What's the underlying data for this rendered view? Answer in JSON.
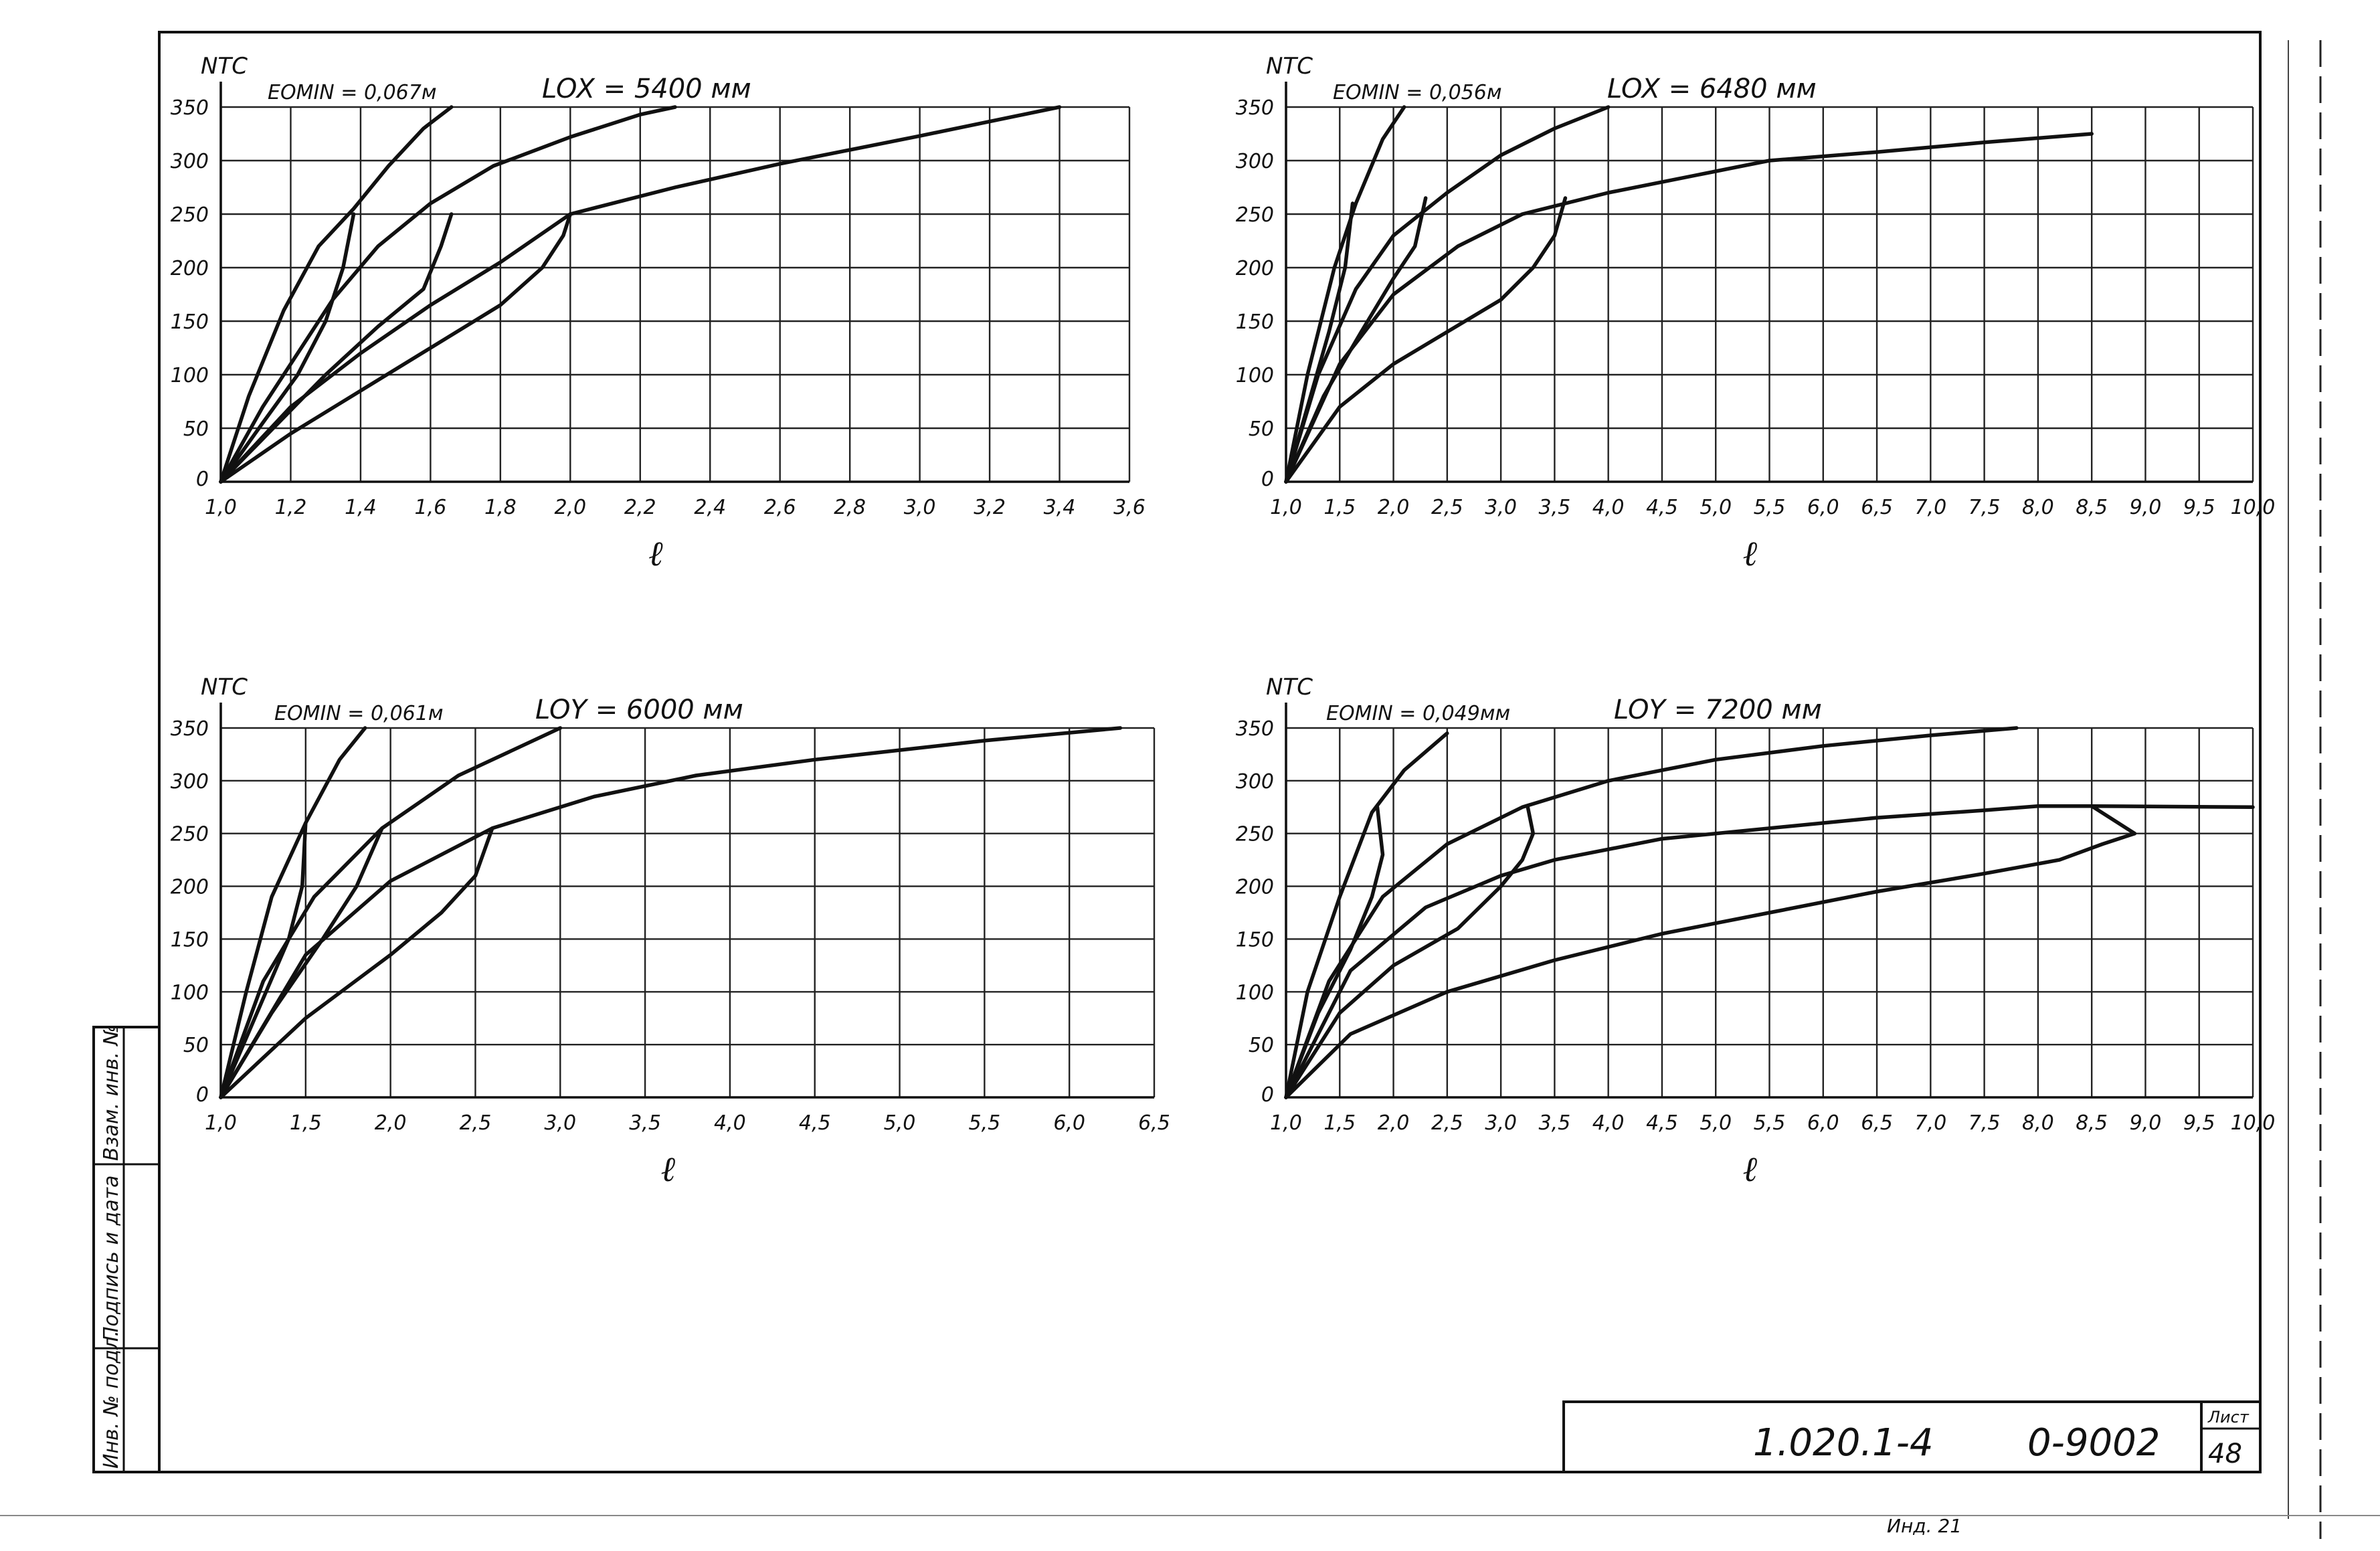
{
  "sheet": {
    "side_labels": [
      "Взам. инв. №",
      "Подпись и дата",
      "Инв. № подл."
    ],
    "code": "1.020.1-4",
    "doc": "0-9002",
    "sheet_label": "Лист",
    "sheet_number": "48",
    "bottom_note": "Инд. 21"
  },
  "chart_data": [
    {
      "type": "line",
      "ylabel": "NТС",
      "xlabel": "ℓ",
      "eomin": "EOMIN = 0,067м",
      "length": "LOX = 5400 мм",
      "xlim": [
        1.0,
        3.6
      ],
      "ylim": [
        0,
        350
      ],
      "x_ticks": [
        "1,0",
        "1,2",
        "1,4",
        "1,6",
        "1,8",
        "2,0",
        "2,2",
        "2,4",
        "2,6",
        "2,8",
        "3,0",
        "3,2",
        "3,4",
        "3,6"
      ],
      "y_ticks": [
        "0",
        "50",
        "100",
        "150",
        "200",
        "250",
        "300",
        "350"
      ],
      "grid": true,
      "series": [
        {
          "points": [
            [
              1.0,
              0
            ],
            [
              1.08,
              80
            ],
            [
              1.18,
              160
            ],
            [
              1.28,
              220
            ],
            [
              1.38,
              255
            ],
            [
              1.48,
              295
            ],
            [
              1.58,
              330
            ],
            [
              1.66,
              350
            ]
          ]
        },
        {
          "points": [
            [
              1.0,
              0
            ],
            [
              1.12,
              70
            ],
            [
              1.22,
              120
            ],
            [
              1.32,
              170
            ],
            [
              1.45,
              220
            ],
            [
              1.6,
              260
            ],
            [
              1.78,
              295
            ],
            [
              2.0,
              322
            ],
            [
              2.2,
              343
            ],
            [
              2.3,
              350
            ]
          ]
        },
        {
          "points": [
            [
              1.0,
              0
            ],
            [
              1.2,
              70
            ],
            [
              1.4,
              120
            ],
            [
              1.6,
              165
            ],
            [
              1.8,
              205
            ],
            [
              2.0,
              250
            ],
            [
              2.3,
              275
            ],
            [
              2.6,
              297
            ],
            [
              3.0,
              323
            ],
            [
              3.4,
              350
            ]
          ]
        },
        {
          "points": [
            [
              1.0,
              0
            ],
            [
              1.2,
              45
            ],
            [
              1.4,
              85
            ],
            [
              1.6,
              125
            ],
            [
              1.8,
              165
            ],
            [
              1.92,
              200
            ],
            [
              1.98,
              230
            ],
            [
              2.0,
              250
            ]
          ]
        },
        {
          "points": [
            [
              1.0,
              0
            ],
            [
              1.15,
              50
            ],
            [
              1.3,
              100
            ],
            [
              1.45,
              145
            ],
            [
              1.58,
              180
            ],
            [
              1.63,
              220
            ],
            [
              1.66,
              250
            ]
          ]
        },
        {
          "points": [
            [
              1.0,
              0
            ],
            [
              1.12,
              55
            ],
            [
              1.22,
              100
            ],
            [
              1.3,
              150
            ],
            [
              1.35,
              200
            ],
            [
              1.38,
              250
            ]
          ]
        }
      ]
    },
    {
      "type": "line",
      "ylabel": "NТС",
      "xlabel": "ℓ",
      "eomin": "EOMIN = 0,056м",
      "length": "LOX = 6480 мм",
      "xlim": [
        1.0,
        10.0
      ],
      "ylim": [
        0,
        350
      ],
      "x_ticks": [
        "1,0",
        "1,5",
        "2,0",
        "2,5",
        "3,0",
        "3,5",
        "4,0",
        "4,5",
        "5,0",
        "5,5",
        "6,0",
        "6,5",
        "7,0",
        "7,5",
        "8,0",
        "8,5",
        "9,0",
        "9,5",
        "10,0"
      ],
      "y_ticks": [
        "0",
        "50",
        "100",
        "150",
        "200",
        "250",
        "300",
        "350"
      ],
      "grid": true,
      "series": [
        {
          "points": [
            [
              1.0,
              0
            ],
            [
              1.2,
              100
            ],
            [
              1.45,
              200
            ],
            [
              1.65,
              260
            ],
            [
              1.9,
              320
            ],
            [
              2.1,
              350
            ]
          ]
        },
        {
          "points": [
            [
              1.0,
              0
            ],
            [
              1.3,
              100
            ],
            [
              1.65,
              180
            ],
            [
              2.0,
              230
            ],
            [
              2.5,
              270
            ],
            [
              3.0,
              305
            ],
            [
              3.5,
              330
            ],
            [
              4.0,
              350
            ]
          ]
        },
        {
          "points": [
            [
              1.0,
              0
            ],
            [
              1.5,
              110
            ],
            [
              2.0,
              175
            ],
            [
              2.6,
              220
            ],
            [
              3.2,
              250
            ],
            [
              4.0,
              270
            ],
            [
              5.0,
              290
            ],
            [
              5.5,
              300
            ],
            [
              6.5,
              308
            ],
            [
              7.5,
              317
            ],
            [
              8.5,
              325
            ]
          ]
        },
        {
          "points": [
            [
              1.0,
              0
            ],
            [
              1.5,
              70
            ],
            [
              2.0,
              110
            ],
            [
              2.5,
              140
            ],
            [
              3.0,
              170
            ],
            [
              3.3,
              200
            ],
            [
              3.5,
              230
            ],
            [
              3.6,
              265
            ]
          ]
        },
        {
          "points": [
            [
              1.0,
              0
            ],
            [
              1.35,
              80
            ],
            [
              1.7,
              140
            ],
            [
              2.0,
              190
            ],
            [
              2.2,
              220
            ],
            [
              2.3,
              265
            ]
          ]
        },
        {
          "points": [
            [
              1.0,
              0
            ],
            [
              1.2,
              70
            ],
            [
              1.4,
              140
            ],
            [
              1.55,
              200
            ],
            [
              1.62,
              260
            ]
          ]
        }
      ]
    },
    {
      "type": "line",
      "ylabel": "NТС",
      "xlabel": "ℓ",
      "eomin": "EOMIN = 0,061м",
      "length": "LOY = 6000 мм",
      "xlim": [
        1.0,
        6.5
      ],
      "ylim": [
        0,
        350
      ],
      "x_ticks": [
        "1,0",
        "1,5",
        "2,0",
        "2,5",
        "3,0",
        "3,5",
        "4,0",
        "4,5",
        "5,0",
        "5,5",
        "6,0",
        "6,5"
      ],
      "y_ticks": [
        "0",
        "50",
        "100",
        "150",
        "200",
        "250",
        "300",
        "350"
      ],
      "grid": true,
      "series": [
        {
          "points": [
            [
              1.0,
              0
            ],
            [
              1.15,
              100
            ],
            [
              1.3,
              190
            ],
            [
              1.5,
              260
            ],
            [
              1.7,
              320
            ],
            [
              1.85,
              350
            ]
          ]
        },
        {
          "points": [
            [
              1.0,
              0
            ],
            [
              1.25,
              110
            ],
            [
              1.55,
              190
            ],
            [
              1.95,
              255
            ],
            [
              2.4,
              305
            ],
            [
              3.0,
              350
            ]
          ]
        },
        {
          "points": [
            [
              1.0,
              0
            ],
            [
              1.5,
              135
            ],
            [
              2.0,
              205
            ],
            [
              2.6,
              255
            ],
            [
              3.2,
              285
            ],
            [
              3.8,
              305
            ],
            [
              4.5,
              320
            ],
            [
              5.5,
              338
            ],
            [
              6.3,
              350
            ]
          ]
        },
        {
          "points": [
            [
              1.0,
              0
            ],
            [
              1.5,
              75
            ],
            [
              2.0,
              135
            ],
            [
              2.3,
              175
            ],
            [
              2.5,
              210
            ],
            [
              2.6,
              255
            ]
          ]
        },
        {
          "points": [
            [
              1.0,
              0
            ],
            [
              1.3,
              80
            ],
            [
              1.6,
              150
            ],
            [
              1.8,
              200
            ],
            [
              1.95,
              255
            ]
          ]
        },
        {
          "points": [
            [
              1.0,
              0
            ],
            [
              1.2,
              75
            ],
            [
              1.4,
              150
            ],
            [
              1.48,
              200
            ],
            [
              1.5,
              260
            ]
          ]
        }
      ]
    },
    {
      "type": "line",
      "ylabel": "NТС",
      "xlabel": "ℓ",
      "eomin": "EOMIN = 0,049мм",
      "length": "LOY = 7200 мм",
      "xlim": [
        1.0,
        10.0
      ],
      "ylim": [
        0,
        350
      ],
      "x_ticks": [
        "1,0",
        "1,5",
        "2,0",
        "2,5",
        "3,0",
        "3,5",
        "4,0",
        "4,5",
        "5,0",
        "5,5",
        "6,0",
        "6,5",
        "7,0",
        "7,5",
        "8,0",
        "8,5",
        "9,0",
        "9,5",
        "10,0"
      ],
      "y_ticks": [
        "0",
        "50",
        "100",
        "150",
        "200",
        "250",
        "300",
        "350"
      ],
      "grid": true,
      "series": [
        {
          "points": [
            [
              1.0,
              0
            ],
            [
              1.2,
              100
            ],
            [
              1.5,
              190
            ],
            [
              1.8,
              270
            ],
            [
              2.1,
              310
            ],
            [
              2.5,
              345
            ]
          ]
        },
        {
          "points": [
            [
              1.0,
              0
            ],
            [
              1.4,
              110
            ],
            [
              1.9,
              190
            ],
            [
              2.5,
              240
            ],
            [
              3.2,
              275
            ],
            [
              4.0,
              300
            ],
            [
              5.0,
              320
            ],
            [
              6.0,
              333
            ],
            [
              7.0,
              343
            ],
            [
              7.8,
              350
            ]
          ]
        },
        {
          "points": [
            [
              1.0,
              0
            ],
            [
              1.6,
              120
            ],
            [
              2.3,
              180
            ],
            [
              3.0,
              210
            ],
            [
              3.5,
              225
            ],
            [
              4.5,
              245
            ],
            [
              5.5,
              255
            ],
            [
              6.5,
              265
            ],
            [
              7.5,
              272
            ],
            [
              8.0,
              276
            ],
            [
              8.5,
              276
            ],
            [
              10.0,
              275
            ]
          ]
        },
        {
          "points": [
            [
              1.0,
              0
            ],
            [
              1.6,
              60
            ],
            [
              2.5,
              100
            ],
            [
              3.5,
              130
            ],
            [
              4.5,
              155
            ],
            [
              5.5,
              175
            ],
            [
              6.5,
              195
            ],
            [
              7.5,
              212
            ],
            [
              8.2,
              225
            ],
            [
              8.6,
              240
            ],
            [
              8.9,
              250
            ],
            [
              8.5,
              276
            ]
          ]
        },
        {
          "points": [
            [
              1.0,
              0
            ],
            [
              1.5,
              80
            ],
            [
              2.0,
              125
            ],
            [
              2.6,
              160
            ],
            [
              3.0,
              200
            ],
            [
              3.2,
              225
            ],
            [
              3.3,
              250
            ],
            [
              3.25,
              275
            ]
          ]
        },
        {
          "points": [
            [
              1.0,
              0
            ],
            [
              1.3,
              80
            ],
            [
              1.6,
              140
            ],
            [
              1.8,
              190
            ],
            [
              1.9,
              230
            ],
            [
              1.85,
              275
            ]
          ]
        }
      ]
    }
  ]
}
